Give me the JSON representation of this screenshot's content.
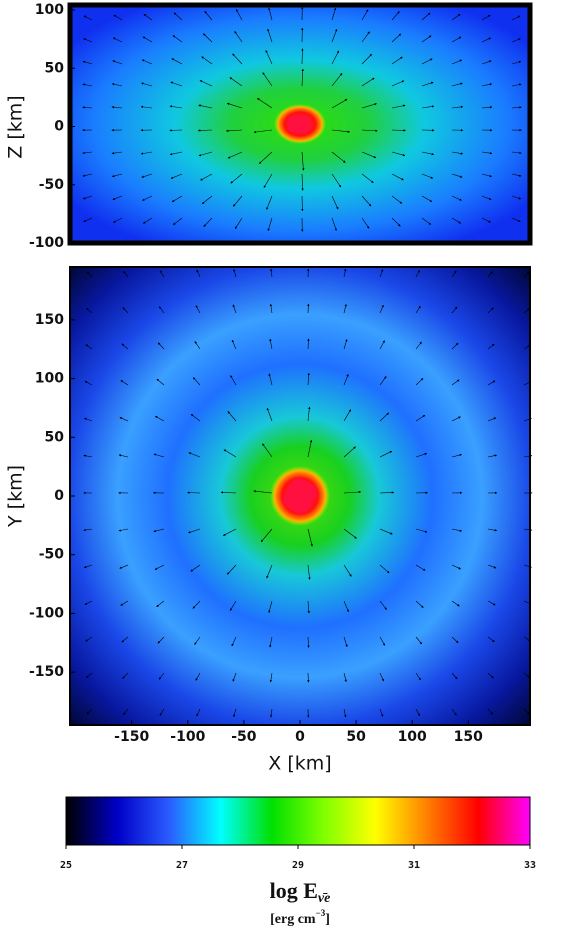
{
  "chart_data": [
    {
      "type": "heatmap",
      "ylabel": "Z [km]",
      "xlim": [
        -205,
        205
      ],
      "ylim": [
        -100,
        100
      ],
      "yticks": [
        -100,
        -50,
        0,
        50,
        100
      ]
    },
    {
      "type": "heatmap",
      "xlabel": "X [km]",
      "ylabel": "Y [km]",
      "xlim": [
        -205,
        205
      ],
      "ylim": [
        -195,
        195
      ],
      "xticks": [
        -150,
        -100,
        -50,
        0,
        50,
        100,
        150
      ],
      "yticks": [
        -150,
        -100,
        -50,
        0,
        50,
        100,
        150
      ]
    },
    {
      "type": "colorbar",
      "label": "log E",
      "label_sub": "ν̄e",
      "unit_parts": [
        "[erg cm",
        "−3",
        "]"
      ],
      "lim": [
        25,
        33
      ],
      "ticks": [
        25,
        27,
        29,
        31,
        33
      ],
      "colormap": [
        "#000000",
        "#0000c8",
        "#2a5cff",
        "#00ffff",
        "#00e000",
        "#80ff00",
        "#ffff00",
        "#ff8000",
        "#ff0000",
        "#ff00ff"
      ]
    }
  ]
}
